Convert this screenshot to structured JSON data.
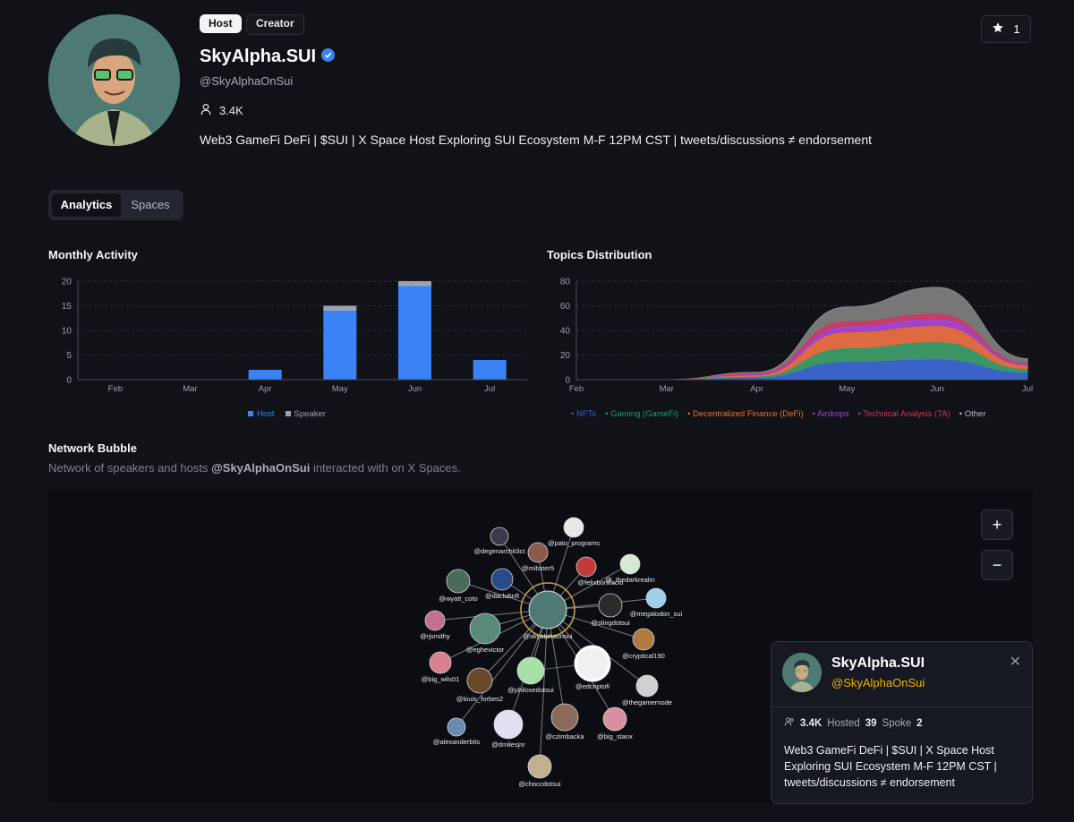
{
  "profile": {
    "badges": [
      "Host",
      "Creator"
    ],
    "name": "SkyAlpha.SUI",
    "handle": "@SkyAlphaOnSui",
    "followers": "3.4K",
    "bio": "Web3 GameFi DeFi | $SUI | X Space Host Exploring SUI Ecosystem M-F 12PM CST | tweets/discussions ≠ endorsement",
    "favorite_count": "1"
  },
  "tabs": [
    {
      "label": "Analytics",
      "active": true
    },
    {
      "label": "Spaces",
      "active": false
    }
  ],
  "monthly_activity": {
    "title": "Monthly Activity"
  },
  "topics": {
    "title": "Topics Distribution"
  },
  "chart_data": [
    {
      "type": "bar",
      "title": "Monthly Activity",
      "categories": [
        "Feb",
        "Mar",
        "Apr",
        "May",
        "Jun",
        "Jul"
      ],
      "stacked": true,
      "series": [
        {
          "name": "Host",
          "color": "#3b82f6",
          "values": [
            0,
            0,
            2,
            14,
            19,
            4
          ]
        },
        {
          "name": "Speaker",
          "color": "#9ca3af",
          "values": [
            0,
            0,
            0,
            1,
            1,
            0
          ]
        }
      ],
      "ylim": [
        0,
        20
      ],
      "yticks": [
        0,
        5,
        10,
        15,
        20
      ],
      "grid": true,
      "legend": "bottom"
    },
    {
      "type": "area",
      "title": "Topics Distribution",
      "categories": [
        "Feb",
        "Mar",
        "Apr",
        "May",
        "Jun",
        "Jul"
      ],
      "stacked": true,
      "series": [
        {
          "name": "NFTs",
          "color": "#3b5bdb",
          "values": [
            0,
            0,
            1,
            14,
            16,
            5
          ]
        },
        {
          "name": "Gaming (GameFi)",
          "color": "#1f9d6b",
          "values": [
            0,
            0,
            1,
            11,
            14,
            3
          ]
        },
        {
          "name": "Decentralized Finance (DeFi)",
          "color": "#e8712a",
          "values": [
            0,
            0,
            1,
            13,
            13,
            3
          ]
        },
        {
          "name": "Airdrops",
          "color": "#9b45d6",
          "values": [
            0,
            0,
            1,
            5,
            6,
            1
          ]
        },
        {
          "name": "Technical Analysis (TA)",
          "color": "#d6335e",
          "values": [
            0,
            0,
            1,
            4,
            4,
            1
          ]
        },
        {
          "name": "Other",
          "color": "#8a8a8a",
          "values": [
            0,
            0,
            1,
            12,
            22,
            4
          ]
        }
      ],
      "ylim": [
        0,
        80
      ],
      "yticks": [
        0,
        20,
        40,
        60,
        80
      ],
      "grid": true,
      "legend": "bottom"
    }
  ],
  "network": {
    "title": "Network Bubble",
    "subtitle_prefix": "Network of speakers and hosts",
    "subtitle_handle": "@SkyAlphaOnSui",
    "subtitle_suffix": "interacted with on X Spaces.",
    "center": "@skyalphaonsui",
    "nodes": [
      "@degenarchit3ct",
      "@pato_programs",
      "@mibster5",
      "@felixbonifacio",
      "@_thedarkrealm",
      "@wyatt_coto",
      "@daclubnft",
      "@megalodon_sui",
      "@stingdotsui",
      "@rjsmithy",
      "@eghevictor",
      "@cryptical190",
      "@big_wils01",
      "@edcriptofi",
      "@philosedotsui",
      "@thegamernode",
      "@louis_forbes2",
      "@czimbacka",
      "@big_stanx",
      "@alexanderbits",
      "@dmilesjnr",
      "@choccdotsui"
    ],
    "zoom_in": "+",
    "zoom_out": "−"
  },
  "card": {
    "name": "SkyAlpha.SUI",
    "handle": "@SkyAlphaOnSui",
    "followers": "3.4K",
    "hosted_label": "Hosted",
    "hosted": "39",
    "spoke_label": "Spoke",
    "spoke": "2",
    "bio": "Web3 GameFi DeFi | $SUI | X Space Host Exploring SUI Ecosystem M-F 12PM CST | tweets/discussions ≠ endorsement",
    "close": "✕"
  },
  "colors": {
    "accent_blue": "#3b82f6",
    "handle_gold": "#f5b100",
    "verified": "#3b82f6"
  }
}
